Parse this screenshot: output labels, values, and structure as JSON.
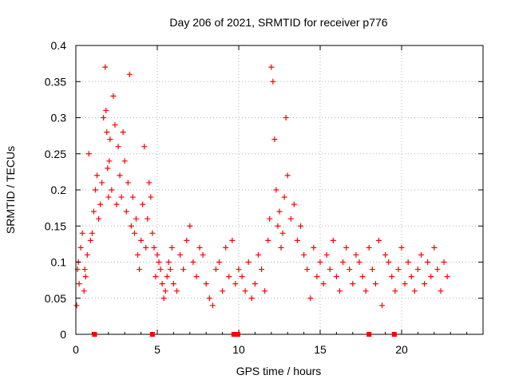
{
  "chart_data": {
    "type": "scatter",
    "title": "Day 206 of 2021, SRMTID for receiver p776",
    "xlabel": "GPS time / hours",
    "ylabel": "SRMTID / TECUs",
    "xlim": [
      0,
      25
    ],
    "ylim": [
      0,
      0.4
    ],
    "x_ticks": [
      0,
      5,
      10,
      15,
      20
    ],
    "x_tick_labels": [
      "0",
      "5",
      "10",
      "15",
      "20"
    ],
    "y_ticks": [
      0,
      0.05,
      0.1,
      0.15,
      0.2,
      0.25,
      0.3,
      0.35,
      0.4
    ],
    "y_tick_labels": [
      "0",
      "0.05",
      "0.1",
      "0.15",
      "0.2",
      "0.25",
      "0.3",
      "0.35",
      "0.4"
    ],
    "grid": true,
    "marker": "+",
    "color": "#ff0000",
    "zero_markers_x": [
      1.15,
      4.7,
      9.7,
      9.95,
      18.0,
      19.55
    ],
    "series": [
      {
        "name": "SRMTID",
        "x": [
          0.05,
          0.1,
          0.15,
          0.2,
          0.3,
          0.4,
          0.5,
          0.55,
          0.6,
          0.7,
          0.8,
          0.9,
          1.0,
          1.1,
          1.2,
          1.3,
          1.4,
          1.5,
          1.6,
          1.7,
          1.8,
          1.85,
          1.9,
          1.95,
          2.0,
          2.05,
          2.1,
          2.2,
          2.3,
          2.4,
          2.5,
          2.6,
          2.7,
          2.8,
          2.9,
          3.0,
          3.1,
          3.2,
          3.3,
          3.4,
          3.5,
          3.6,
          3.7,
          3.8,
          3.9,
          4.0,
          4.1,
          4.2,
          4.3,
          4.4,
          4.5,
          4.6,
          4.7,
          4.8,
          4.9,
          5.0,
          5.1,
          5.2,
          5.3,
          5.4,
          5.5,
          5.6,
          5.7,
          5.8,
          5.9,
          6.0,
          6.2,
          6.4,
          6.6,
          6.8,
          7.0,
          7.2,
          7.4,
          7.6,
          7.8,
          8.0,
          8.2,
          8.4,
          8.6,
          8.8,
          9.0,
          9.2,
          9.4,
          9.6,
          9.8,
          10.0,
          10.2,
          10.4,
          10.6,
          10.8,
          11.0,
          11.2,
          11.4,
          11.6,
          11.8,
          11.9,
          12.0,
          12.1,
          12.2,
          12.3,
          12.4,
          12.5,
          12.6,
          12.7,
          12.8,
          12.9,
          13.0,
          13.2,
          13.4,
          13.6,
          13.8,
          14.0,
          14.2,
          14.4,
          14.6,
          14.8,
          15.0,
          15.2,
          15.4,
          15.6,
          15.8,
          16.0,
          16.2,
          16.4,
          16.6,
          16.8,
          17.0,
          17.2,
          17.4,
          17.6,
          17.8,
          18.0,
          18.2,
          18.4,
          18.6,
          18.8,
          19.0,
          19.2,
          19.4,
          19.6,
          19.8,
          20.0,
          20.2,
          20.4,
          20.6,
          20.8,
          21.0,
          21.2,
          21.4,
          21.6,
          21.8,
          22.0,
          22.2,
          22.4,
          22.6,
          22.8
        ],
        "y": [
          0.04,
          0.09,
          0.1,
          0.07,
          0.12,
          0.14,
          0.06,
          0.09,
          0.08,
          0.11,
          0.25,
          0.13,
          0.14,
          0.17,
          0.2,
          0.22,
          0.16,
          0.18,
          0.21,
          0.3,
          0.37,
          0.31,
          0.28,
          0.23,
          0.19,
          0.24,
          0.27,
          0.2,
          0.33,
          0.29,
          0.18,
          0.26,
          0.22,
          0.19,
          0.28,
          0.24,
          0.17,
          0.21,
          0.36,
          0.15,
          0.19,
          0.14,
          0.16,
          0.11,
          0.09,
          0.13,
          0.18,
          0.26,
          0.12,
          0.16,
          0.21,
          0.19,
          0.14,
          0.12,
          0.08,
          0.11,
          0.1,
          0.09,
          0.07,
          0.05,
          0.06,
          0.08,
          0.1,
          0.09,
          0.12,
          0.07,
          0.06,
          0.11,
          0.09,
          0.13,
          0.15,
          0.1,
          0.08,
          0.12,
          0.11,
          0.07,
          0.05,
          0.04,
          0.09,
          0.1,
          0.06,
          0.12,
          0.08,
          0.13,
          0.07,
          0.09,
          0.08,
          0.06,
          0.1,
          0.05,
          0.07,
          0.11,
          0.09,
          0.06,
          0.13,
          0.16,
          0.37,
          0.35,
          0.27,
          0.2,
          0.15,
          0.17,
          0.12,
          0.14,
          0.19,
          0.3,
          0.22,
          0.16,
          0.18,
          0.13,
          0.15,
          0.11,
          0.09,
          0.05,
          0.12,
          0.08,
          0.1,
          0.07,
          0.11,
          0.09,
          0.13,
          0.08,
          0.06,
          0.1,
          0.12,
          0.09,
          0.07,
          0.11,
          0.1,
          0.08,
          0.06,
          0.12,
          0.09,
          0.07,
          0.13,
          0.04,
          0.11,
          0.1,
          0.08,
          0.06,
          0.09,
          0.12,
          0.07,
          0.1,
          0.08,
          0.06,
          0.09,
          0.11,
          0.07,
          0.1,
          0.08,
          0.12,
          0.09,
          0.06,
          0.1,
          0.08
        ]
      }
    ]
  }
}
